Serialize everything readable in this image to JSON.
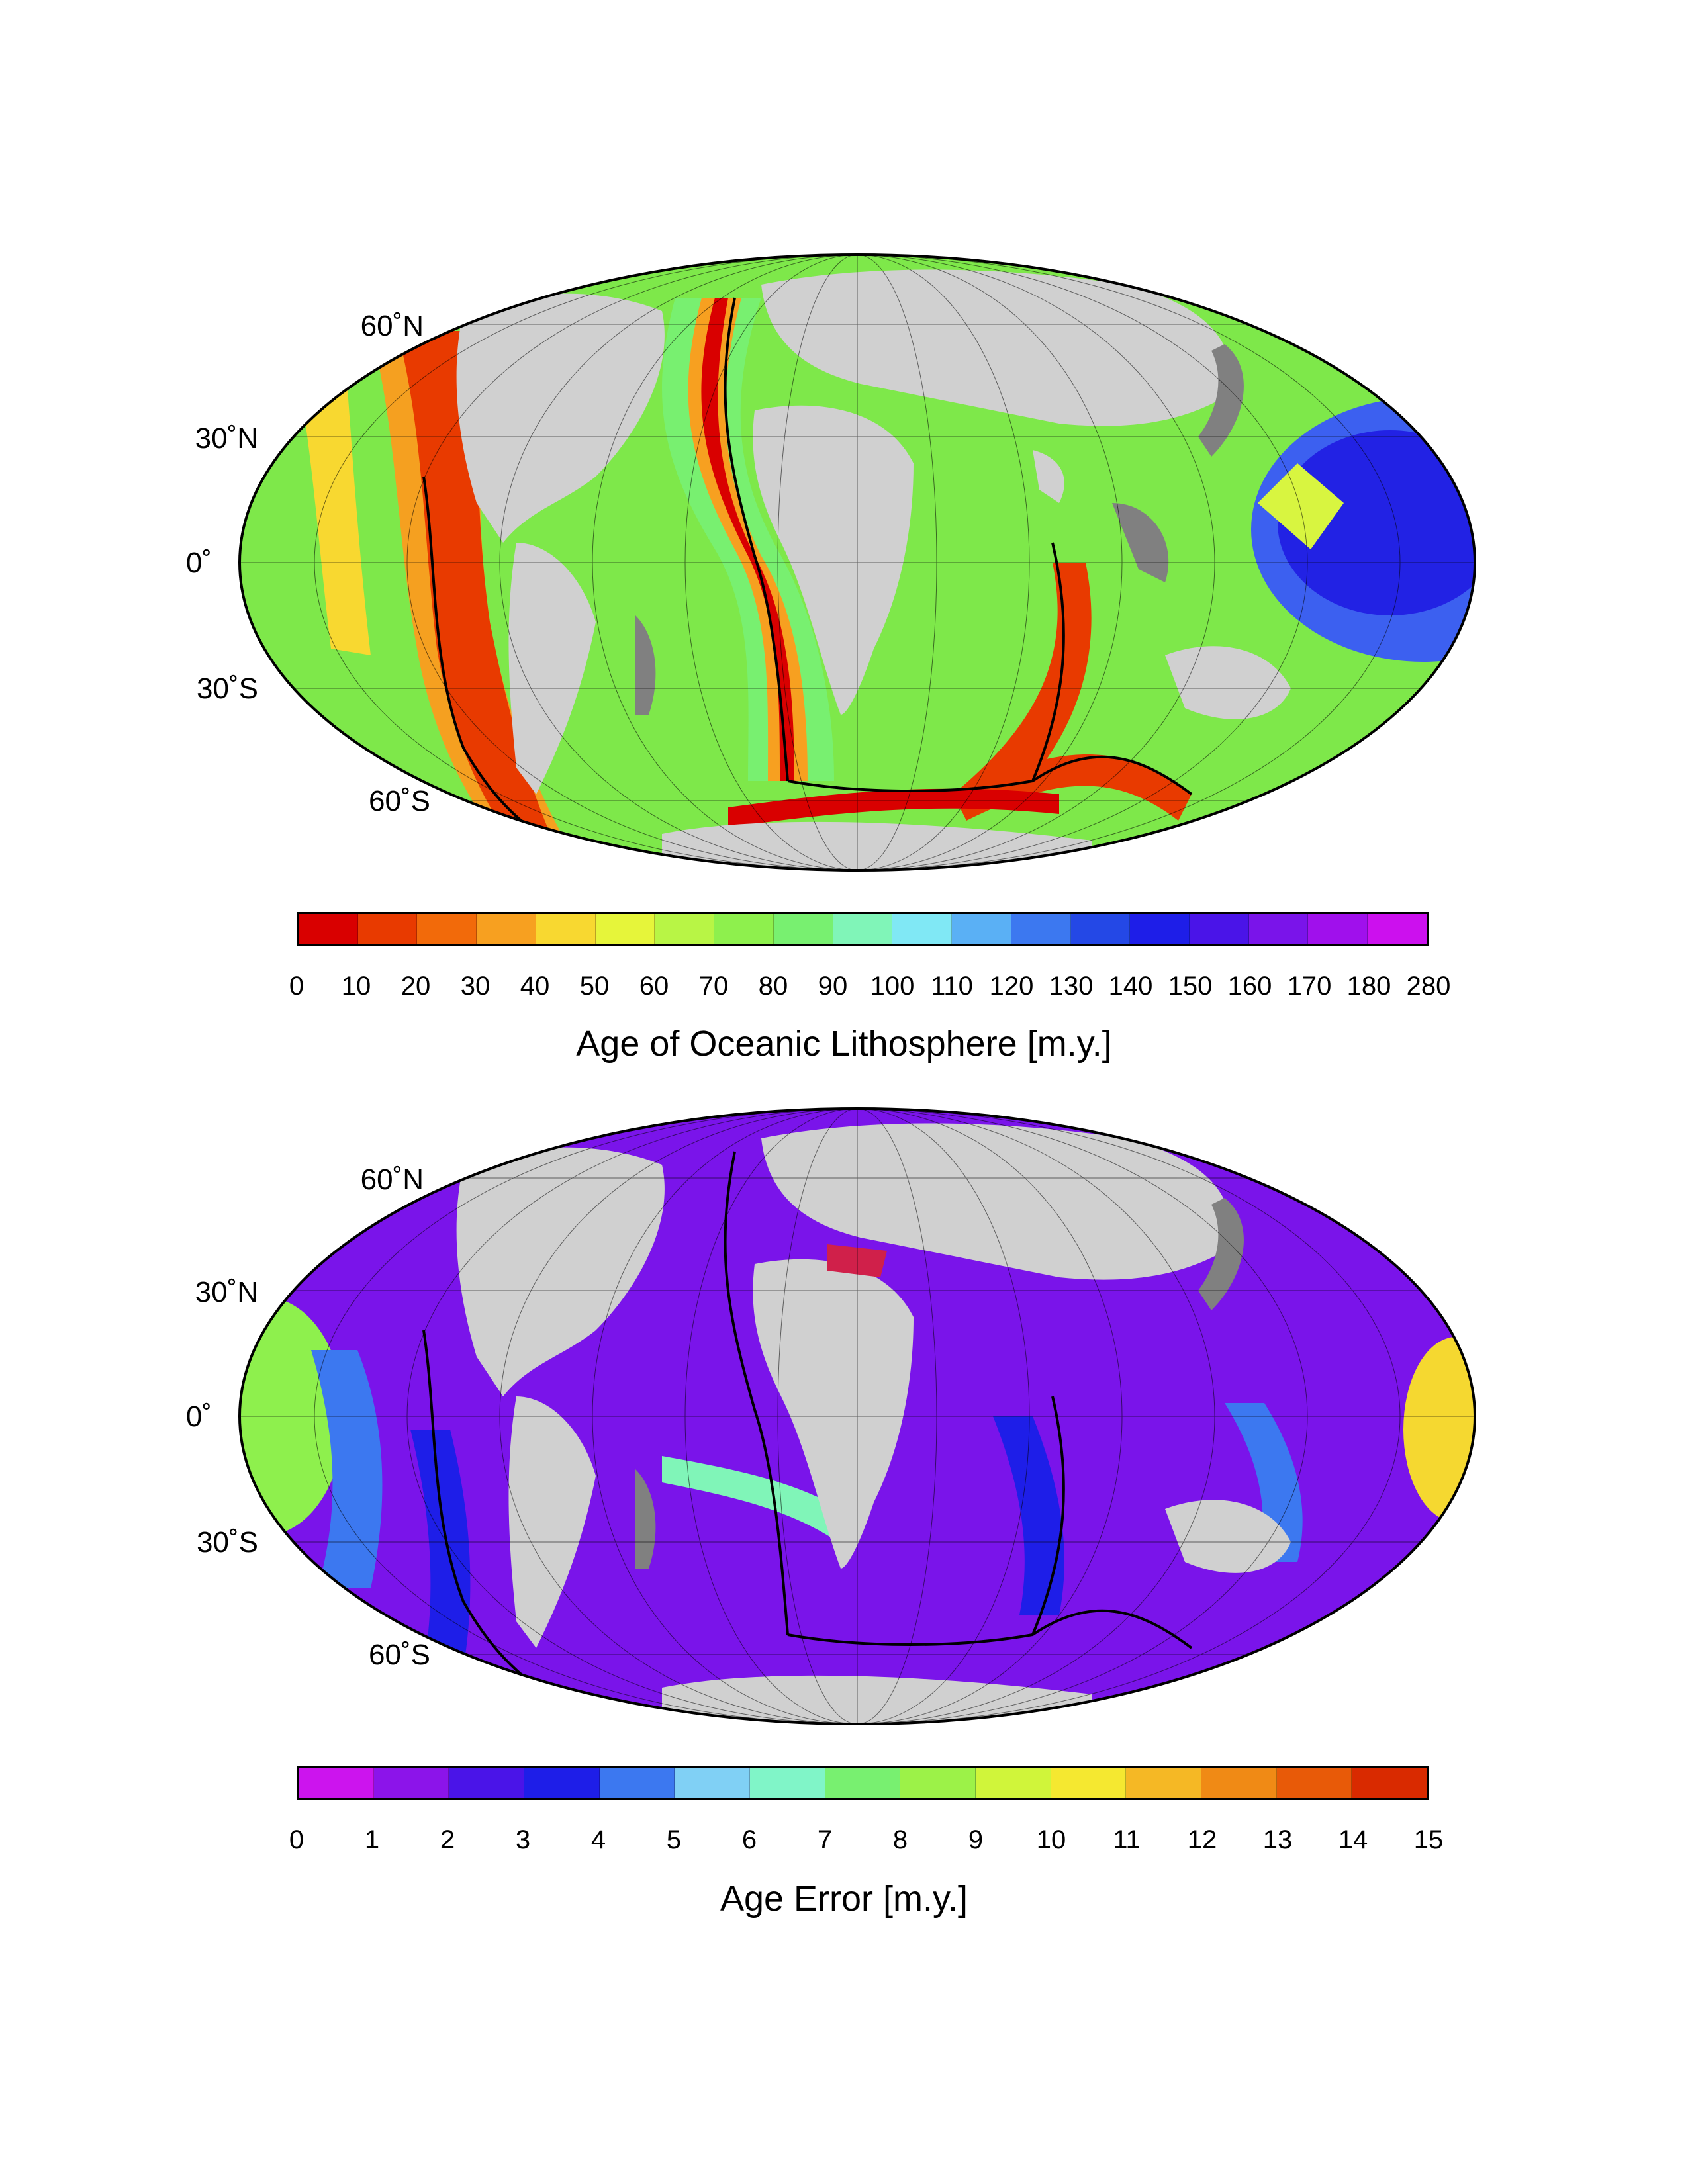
{
  "panels": {
    "age": {
      "lat_labels": [
        "60˚N",
        "30˚N",
        "0˚",
        "30˚S",
        "60˚S"
      ],
      "colorbar_ticks": [
        "0",
        "10",
        "20",
        "30",
        "40",
        "50",
        "60",
        "70",
        "80",
        "90",
        "100",
        "110",
        "120",
        "130",
        "140",
        "150",
        "160",
        "170",
        "180",
        "280"
      ],
      "colorbar_colors": [
        "#d90000",
        "#e83a00",
        "#f26a0a",
        "#f7a020",
        "#f8d830",
        "#e6f53a",
        "#b8f545",
        "#8ef04d",
        "#78f070",
        "#80f5b8",
        "#80e8f5",
        "#5ab0f5",
        "#3c78f0",
        "#2448e6",
        "#1e1ee8",
        "#4a14e8",
        "#7a14ea",
        "#a010ec",
        "#cc10ee"
      ],
      "title": "Age of Oceanic Lithosphere [m.y.]"
    },
    "error": {
      "lat_labels": [
        "60˚N",
        "30˚N",
        "0˚",
        "30˚S",
        "60˚S"
      ],
      "colorbar_ticks": [
        "0",
        "1",
        "2",
        "3",
        "4",
        "5",
        "6",
        "7",
        "8",
        "9",
        "10",
        "11",
        "12",
        "13",
        "14",
        "15"
      ],
      "colorbar_colors": [
        "#cc14ee",
        "#8c14ea",
        "#4a14e8",
        "#1e1ee8",
        "#3c78f0",
        "#80d0f5",
        "#80f5c8",
        "#78f070",
        "#9cf248",
        "#d0f53a",
        "#f5e830",
        "#f5b825",
        "#f08a15",
        "#e85a08",
        "#d92a00"
      ],
      "title": "Age Error [m.y.]"
    }
  },
  "colors": {
    "continent": "#d0d0d0",
    "shelf": "#808080",
    "coastline": "#000000"
  }
}
